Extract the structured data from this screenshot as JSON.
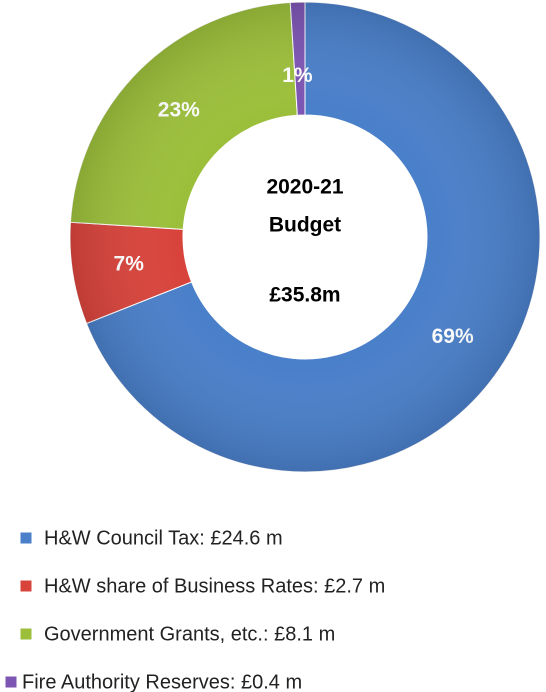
{
  "chart_data": {
    "type": "donut",
    "categories": [
      "H&W Council Tax: £24.6 m",
      "H&W share of Business Rates: £2.7 m",
      "Government Grants, etc.: £8.1 m",
      "Fire Authority Reserves: £0.4 m"
    ],
    "values": [
      69,
      7,
      23,
      1
    ],
    "value_labels": [
      "69%",
      "7%",
      "23%",
      "1%"
    ],
    "colors": [
      "#4a7fc9",
      "#d8443c",
      "#9cbf3b",
      "#7d55b3"
    ],
    "center_text": [
      "2020-21",
      "Budget",
      "£35.8m"
    ],
    "legend": "bottom"
  }
}
